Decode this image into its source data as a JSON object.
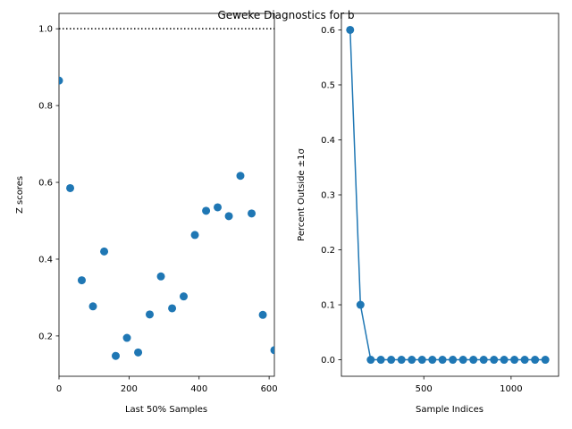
{
  "figure": {
    "title": "Geweke Diagnostics for b"
  },
  "chart_data": [
    {
      "type": "scatter",
      "xlabel": "Last 50% Samples",
      "ylabel": "Z scores",
      "xlim": [
        0,
        615
      ],
      "ylim": [
        0.095,
        1.04
      ],
      "xticks": [
        0,
        200,
        400,
        600
      ],
      "yticks": [
        0.2,
        0.4,
        0.6,
        0.8,
        1.0
      ],
      "ytick_labels": [
        "0.2",
        "0.4",
        "0.6",
        "0.8",
        "1.0"
      ],
      "reference_line": {
        "y": 1.0,
        "style": "dotted",
        "color": "#000000"
      },
      "grid": false,
      "color": "#1f77b4",
      "x": [
        0,
        32,
        65,
        97,
        129,
        162,
        194,
        226,
        259,
        291,
        323,
        356,
        388,
        420,
        453,
        485,
        518,
        550,
        582,
        615
      ],
      "y": [
        0.865,
        0.585,
        0.345,
        0.277,
        0.42,
        0.148,
        0.195,
        0.157,
        0.256,
        0.355,
        0.272,
        0.303,
        0.463,
        0.526,
        0.535,
        0.512,
        0.617,
        0.519,
        0.255,
        0.163
      ]
    },
    {
      "type": "line",
      "xlabel": "Sample Indices",
      "ylabel": "Percent Outside ±1σ",
      "xlim": [
        28,
        1272
      ],
      "ylim": [
        -0.03,
        0.63
      ],
      "xticks": [
        500,
        1000
      ],
      "yticks": [
        0.0,
        0.1,
        0.2,
        0.3,
        0.4,
        0.5,
        0.6
      ],
      "ytick_labels": [
        "0.0",
        "0.1",
        "0.2",
        "0.3",
        "0.4",
        "0.5",
        "0.6"
      ],
      "grid": false,
      "marker": "circle",
      "color": "#1f77b4",
      "x": [
        78,
        137,
        196,
        254,
        313,
        372,
        431,
        490,
        549,
        607,
        666,
        725,
        784,
        843,
        902,
        960,
        1019,
        1078,
        1137,
        1196
      ],
      "y": [
        0.6,
        0.1,
        0.0,
        0.0,
        0.0,
        0.0,
        0.0,
        0.0,
        0.0,
        0.0,
        0.0,
        0.0,
        0.0,
        0.0,
        0.0,
        0.0,
        0.0,
        0.0,
        0.0,
        0.0
      ]
    }
  ]
}
